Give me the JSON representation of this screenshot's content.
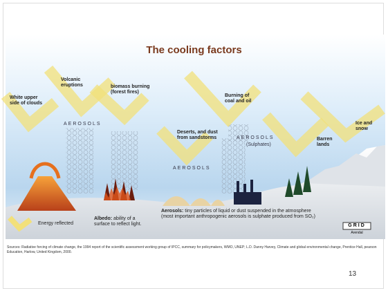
{
  "title": "The cooling factors",
  "labels": [
    "White upper side of clouds",
    "Volcanic eruptions",
    "biomass burning (forest fires)",
    "Deserts, and dust from sandstorms",
    "Burning of coal and oil",
    "Barren lands",
    "Ice and snow"
  ],
  "aerosols": [
    "AEROSOLS",
    "AEROSOLS",
    "AEROSOLS",
    "(Sulphates)"
  ],
  "legend": "Energy reflected",
  "albedo": {
    "term": "Albedo:",
    "text": "ability of a surface to reflect light."
  },
  "aerosol_definition": {
    "term": "Aerosols:",
    "text": "tiny particles of liquid or dust suspended in the atmosphere (most important anthropogenic aerosols is sulphate produced from SO₂)"
  },
  "logo": {
    "name": "GRID",
    "sub": "Arendal"
  },
  "sources": "Sources: Radiative forcing of climate change, the 1994 report of the scientific assessment working group of IPCC, summary for policymakers, WMO, UNEP; L.D. Danny Harvey, Climate and global environmental change, Prentice Hall, pearson Education, Harlow, United Kingdom, 2000.",
  "page_number": "13"
}
